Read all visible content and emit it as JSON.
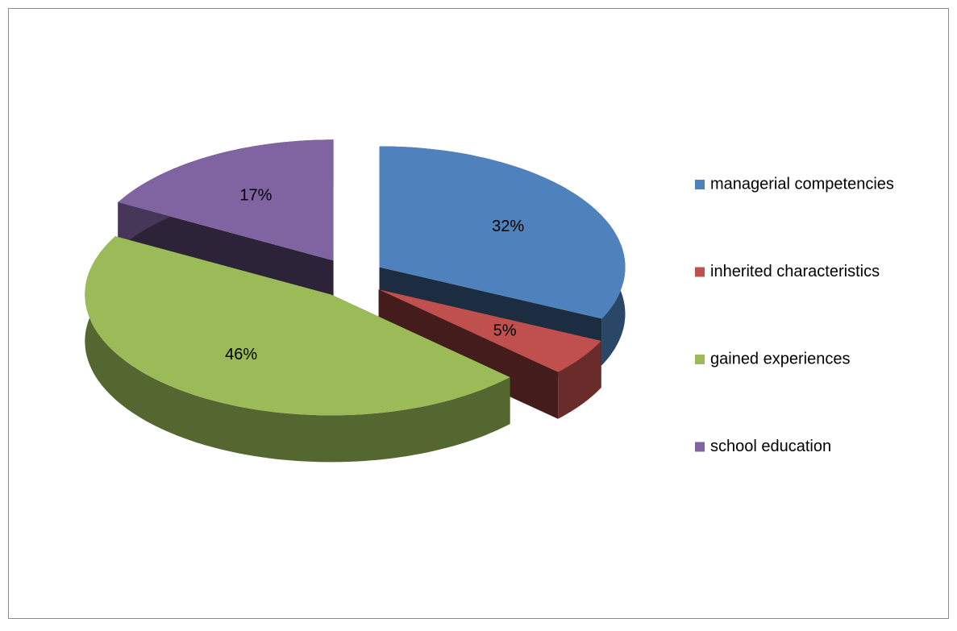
{
  "chart_data": {
    "type": "pie",
    "categories": [
      "managerial competencies",
      "inherited characteristics",
      "gained experiences",
      "school education"
    ],
    "values": [
      32,
      5,
      46,
      17
    ],
    "value_labels": [
      "32%",
      "5%",
      "46%",
      "17%"
    ],
    "colors": [
      "#4f81bd",
      "#c0504d",
      "#9bbb59",
      "#8064a2"
    ],
    "legend": "right"
  }
}
